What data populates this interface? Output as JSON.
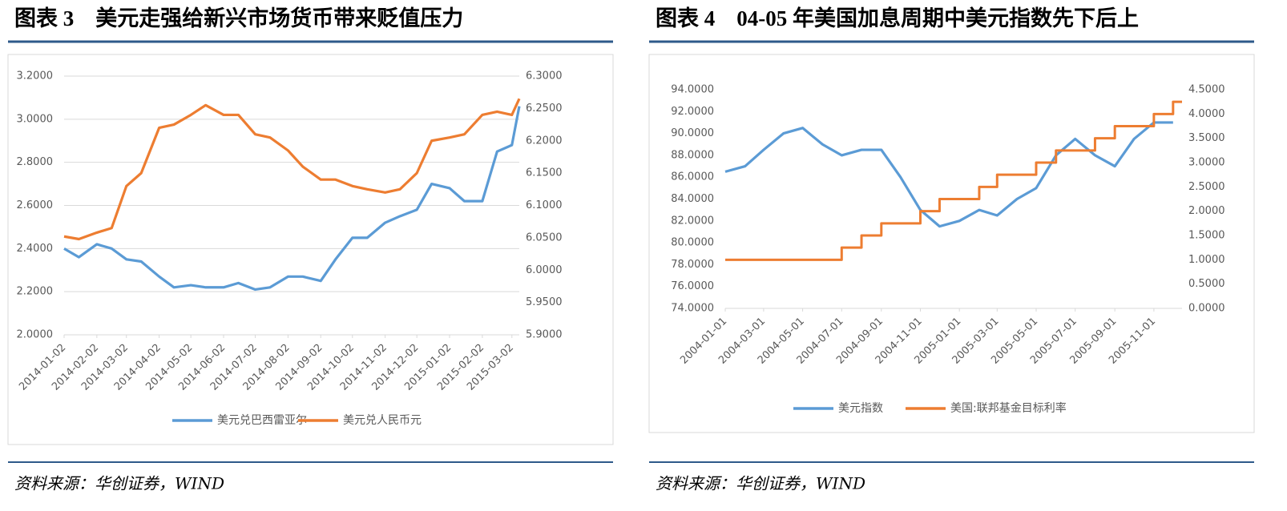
{
  "chart_data": [
    {
      "type": "line",
      "title": "图表 3　美元走强给新兴市场货币带来贬值压力",
      "source": "资料来源：华创证券，WIND",
      "x": [
        "2014-01-02",
        "2014-01-16",
        "2014-02-02",
        "2014-02-16",
        "2014-03-02",
        "2014-03-16",
        "2014-04-02",
        "2014-04-16",
        "2014-05-02",
        "2014-05-16",
        "2014-06-02",
        "2014-06-16",
        "2014-07-02",
        "2014-07-16",
        "2014-08-02",
        "2014-08-16",
        "2014-09-02",
        "2014-09-16",
        "2014-10-02",
        "2014-10-16",
        "2014-11-02",
        "2014-11-16",
        "2014-12-02",
        "2014-12-16",
        "2015-01-02",
        "2015-01-16",
        "2015-02-02",
        "2015-02-16",
        "2015-03-02",
        "2015-03-09"
      ],
      "xlim": [
        "2014-01-02",
        "2015-03-09"
      ],
      "xticks": [
        "2014-01-02",
        "2014-02-02",
        "2014-03-02",
        "2014-04-02",
        "2014-05-02",
        "2014-06-02",
        "2014-07-02",
        "2014-08-02",
        "2014-09-02",
        "2014-10-02",
        "2014-11-02",
        "2014-12-02",
        "2015-01-02",
        "2015-02-02",
        "2015-03-02"
      ],
      "series": [
        {
          "name": "美元兑巴西雷亚尔",
          "color": "#5b9bd5",
          "values": [
            2.4,
            2.36,
            2.42,
            2.4,
            2.35,
            2.34,
            2.27,
            2.22,
            2.23,
            2.22,
            2.22,
            2.24,
            2.21,
            2.22,
            2.27,
            2.27,
            2.25,
            2.35,
            2.45,
            2.45,
            2.52,
            2.55,
            2.58,
            2.7,
            2.68,
            2.62,
            2.62,
            2.85,
            2.88,
            3.06
          ]
        },
        {
          "name": "美元兑人民币元",
          "color": "#ed7d31",
          "axis": "y2",
          "values": [
            6.052,
            6.048,
            6.058,
            6.065,
            6.13,
            6.15,
            6.22,
            6.225,
            6.24,
            6.255,
            6.24,
            6.24,
            6.21,
            6.205,
            6.185,
            6.16,
            6.14,
            6.14,
            6.13,
            6.125,
            6.12,
            6.125,
            6.15,
            6.2,
            6.205,
            6.21,
            6.24,
            6.245,
            6.24,
            6.265
          ]
        }
      ],
      "ylim": [
        2.0,
        3.2
      ],
      "yticks": [
        {
          "value": 2.0,
          "label": "2.0000"
        },
        {
          "value": 2.2,
          "label": "2.2000"
        },
        {
          "value": 2.4,
          "label": "2.4000"
        },
        {
          "value": 2.6,
          "label": "2.6000"
        },
        {
          "value": 2.8,
          "label": "2.8000"
        },
        {
          "value": 3.0,
          "label": "3.0000"
        },
        {
          "value": 3.2,
          "label": "3.2000"
        }
      ],
      "y2lim": [
        5.9,
        6.3
      ],
      "y2ticks": [
        {
          "value": 5.9,
          "label": "5.9000"
        },
        {
          "value": 5.95,
          "label": "5.9500"
        },
        {
          "value": 6.0,
          "label": "6.0000"
        },
        {
          "value": 6.05,
          "label": "6.0500"
        },
        {
          "value": 6.1,
          "label": "6.1000"
        },
        {
          "value": 6.15,
          "label": "6.1500"
        },
        {
          "value": 6.2,
          "label": "6.2000"
        },
        {
          "value": 6.25,
          "label": "6.2500"
        },
        {
          "value": 6.3,
          "label": "6.3000"
        }
      ],
      "grid": true,
      "legend": "bottom"
    },
    {
      "type": "line",
      "title": "图表 4　04-05 年美国加息周期中美元指数先下后上",
      "source": "资料来源：华创证券，WIND",
      "x": [
        "2004-01-01",
        "2004-02-01",
        "2004-03-01",
        "2004-04-01",
        "2004-05-01",
        "2004-06-01",
        "2004-07-01",
        "2004-08-01",
        "2004-09-01",
        "2004-10-01",
        "2004-11-01",
        "2004-12-01",
        "2005-01-01",
        "2005-02-01",
        "2005-03-01",
        "2005-04-01",
        "2005-05-01",
        "2005-06-01",
        "2005-07-01",
        "2005-08-01",
        "2005-09-01",
        "2005-10-01",
        "2005-11-01",
        "2005-12-01"
      ],
      "xlim": [
        "2004-01-01",
        "2005-12-15"
      ],
      "xticks": [
        "2004-01-01",
        "2004-03-01",
        "2004-05-01",
        "2004-07-01",
        "2004-09-01",
        "2004-11-01",
        "2005-01-01",
        "2005-03-01",
        "2005-05-01",
        "2005-07-01",
        "2005-09-01",
        "2005-11-01"
      ],
      "series": [
        {
          "name": "美元指数",
          "color": "#5b9bd5",
          "values": [
            86.5,
            87,
            88.5,
            90,
            90.5,
            89,
            88,
            88.5,
            88.5,
            86,
            83,
            81.5,
            82,
            83,
            82.5,
            84,
            85,
            88,
            89.5,
            88,
            87,
            89.5,
            91,
            91
          ]
        },
        {
          "name": "美国:联邦基金目标利率",
          "color": "#ed7d31",
          "axis": "y2",
          "step": true,
          "values": [
            1.0,
            1.0,
            1.0,
            1.0,
            1.0,
            1.0,
            1.25,
            1.5,
            1.75,
            1.75,
            2.0,
            2.25,
            2.25,
            2.5,
            2.75,
            2.75,
            3.0,
            3.25,
            3.25,
            3.5,
            3.75,
            3.75,
            4.0,
            4.25
          ]
        }
      ],
      "ylim": [
        74,
        94
      ],
      "yticks": [
        {
          "value": 74,
          "label": "74.0000"
        },
        {
          "value": 76,
          "label": "76.0000"
        },
        {
          "value": 78,
          "label": "78.0000"
        },
        {
          "value": 80,
          "label": "80.0000"
        },
        {
          "value": 82,
          "label": "82.0000"
        },
        {
          "value": 84,
          "label": "84.0000"
        },
        {
          "value": 86,
          "label": "86.0000"
        },
        {
          "value": 88,
          "label": "88.0000"
        },
        {
          "value": 90,
          "label": "90.0000"
        },
        {
          "value": 92,
          "label": "92.0000"
        },
        {
          "value": 94,
          "label": "94.0000"
        }
      ],
      "y2lim": [
        0,
        4.5
      ],
      "y2ticks": [
        {
          "value": 0,
          "label": "0.0000"
        },
        {
          "value": 0.5,
          "label": "0.5000"
        },
        {
          "value": 1.0,
          "label": "1.0000"
        },
        {
          "value": 1.5,
          "label": "1.5000"
        },
        {
          "value": 2.0,
          "label": "2.0000"
        },
        {
          "value": 2.5,
          "label": "2.5000"
        },
        {
          "value": 3.0,
          "label": "3.0000"
        },
        {
          "value": 3.5,
          "label": "3.5000"
        },
        {
          "value": 4.0,
          "label": "4.0000"
        },
        {
          "value": 4.5,
          "label": "4.5000"
        }
      ],
      "grid": false,
      "legend": "bottom"
    }
  ]
}
